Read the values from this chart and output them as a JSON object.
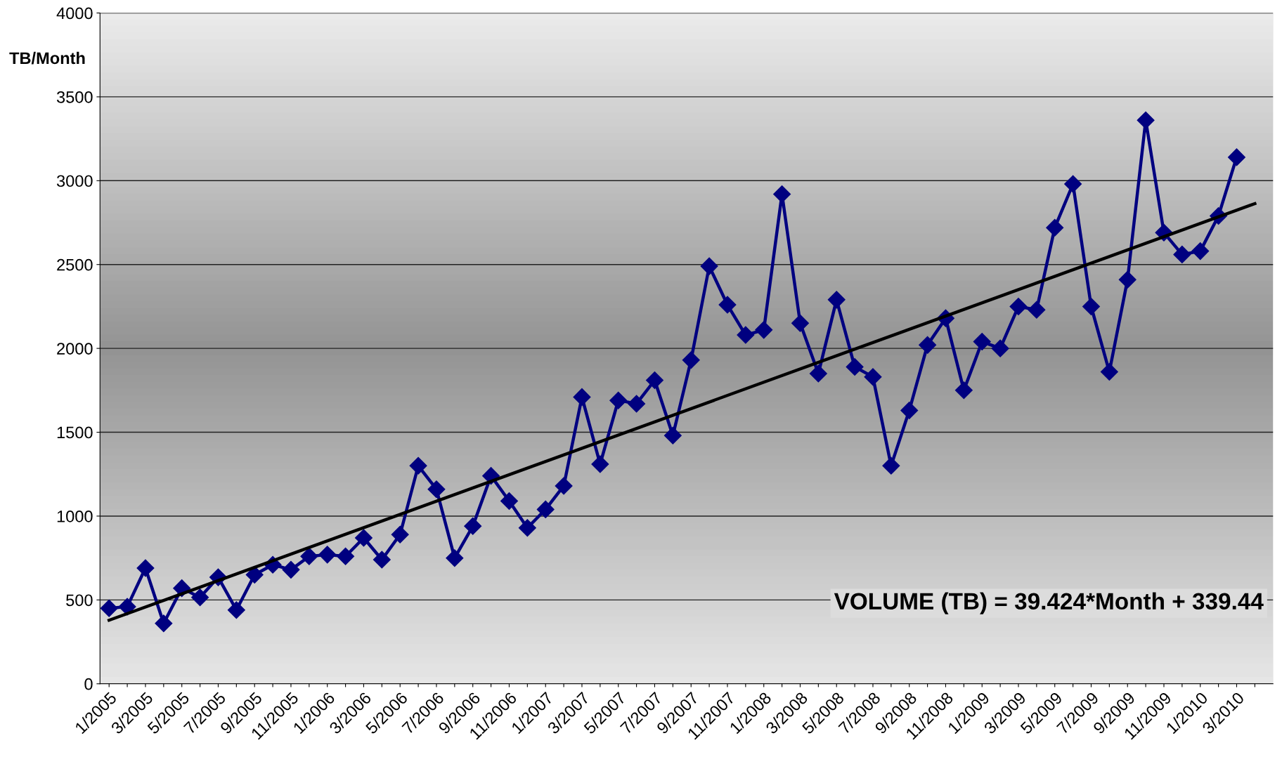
{
  "chart_data": {
    "type": "line",
    "ylabel": "TB/Month",
    "categories": [
      "1/2005",
      null,
      "3/2005",
      null,
      "5/2005",
      null,
      "7/2005",
      null,
      "9/2005",
      null,
      "11/2005",
      null,
      "1/2006",
      null,
      "3/2006",
      null,
      "5/2006",
      null,
      "7/2006",
      null,
      "9/2006",
      null,
      "11/2006",
      null,
      "1/2007",
      null,
      "3/2007",
      null,
      "5/2007",
      null,
      "7/2007",
      null,
      "9/2007",
      null,
      "11/2007",
      null,
      "1/2008",
      null,
      "3/2008",
      null,
      "5/2008",
      null,
      "7/2008",
      null,
      "9/2008",
      null,
      "11/2008",
      null,
      "1/2009",
      null,
      "3/2009",
      null,
      "5/2009",
      null,
      "7/2009",
      null,
      "9/2009",
      null,
      "11/2009",
      null,
      "1/2010",
      null,
      "3/2010",
      null
    ],
    "series": [
      {
        "color": "#000080",
        "marker": "diamond",
        "values": [
          450,
          460,
          690,
          360,
          570,
          515,
          635,
          440,
          650,
          710,
          680,
          760,
          770,
          760,
          870,
          740,
          890,
          1300,
          1160,
          750,
          940,
          1240,
          1090,
          930,
          1040,
          1180,
          1710,
          1310,
          1690,
          1670,
          1810,
          1480,
          1930,
          2490,
          2260,
          2080,
          2110,
          2920,
          2150,
          1850,
          2290,
          1890,
          1830,
          1300,
          1630,
          2020,
          2180,
          1750,
          2040,
          2000,
          2250,
          2230,
          2720,
          2980,
          2250,
          1860,
          2410,
          3360,
          2690,
          2560,
          2580,
          2790,
          3140,
          null
        ]
      },
      {
        "color": "#000000",
        "marker": "none",
        "values": [
          379,
          null,
          null,
          null,
          null,
          null,
          null,
          null,
          null,
          null,
          null,
          null,
          null,
          null,
          null,
          null,
          null,
          null,
          null,
          null,
          null,
          null,
          null,
          null,
          null,
          null,
          null,
          null,
          null,
          null,
          null,
          null,
          null,
          null,
          null,
          null,
          null,
          null,
          null,
          null,
          null,
          null,
          null,
          null,
          null,
          null,
          null,
          null,
          null,
          null,
          null,
          null,
          null,
          null,
          null,
          null,
          null,
          null,
          null,
          null,
          null,
          null,
          null,
          2863
        ]
      }
    ],
    "ylim": [
      0,
      4000
    ],
    "yticks": [
      0,
      500,
      1000,
      1500,
      2000,
      2500,
      3000,
      3500,
      4000
    ],
    "grid": "y",
    "legend": false,
    "annotations": [
      "VOLUME (TB) = 39.424*Month + 339.44"
    ]
  }
}
